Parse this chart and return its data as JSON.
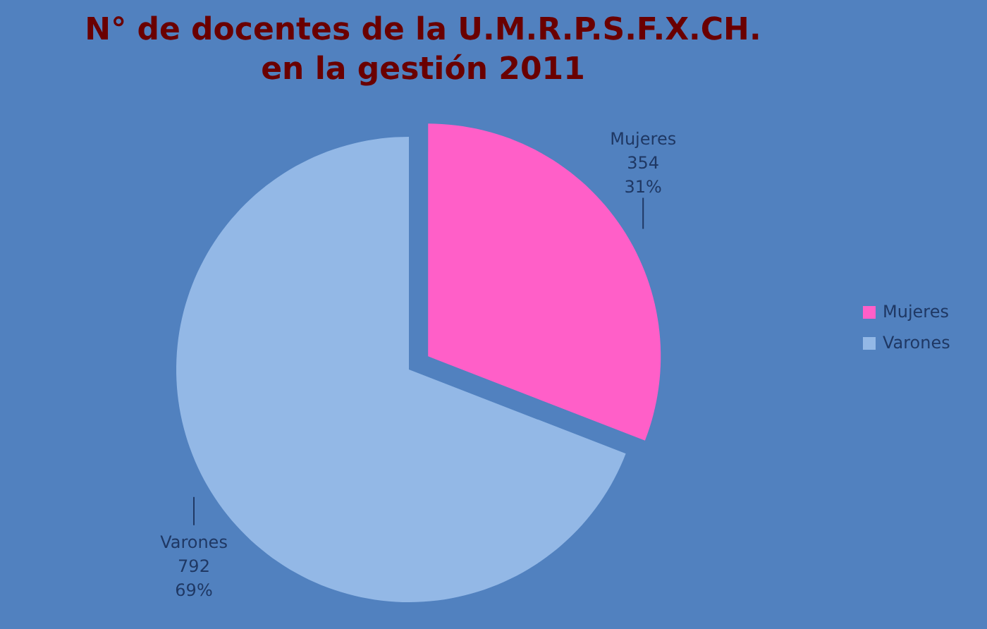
{
  "chart_data": {
    "type": "pie",
    "title": "N° de docentes de la U.M.R.P.S.F.X.CH.\nen la gestión 2011",
    "categories": [
      "Mujeres",
      "Varones"
    ],
    "values": [
      354,
      792
    ],
    "colors": [
      "#ff5fc8",
      "#93b8e6"
    ],
    "value_labels": [
      "354\n31%",
      "792\n69%"
    ],
    "legend": "right"
  }
}
